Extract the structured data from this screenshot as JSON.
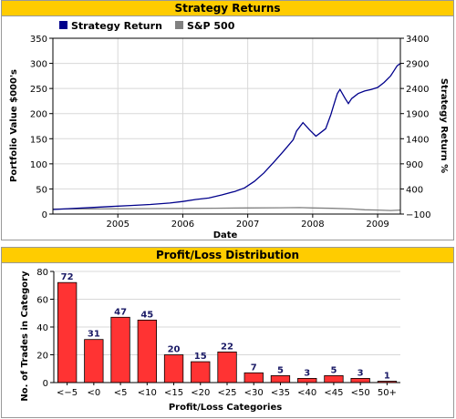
{
  "colors": {
    "header_band": "#ffcc00",
    "strategy_line": "#00008b",
    "sp500_line": "#808080",
    "bar_fill": "#ff3333",
    "bar_label": "#1a1a66"
  },
  "chart_data": [
    {
      "type": "line",
      "title": "Strategy Returns",
      "xlabel": "Date",
      "ylabel": "Portfolio Value $000's",
      "y2label": "Strategy Return %",
      "xlim": [
        2004.0,
        2009.35
      ],
      "xticks": [
        "2005",
        "2006",
        "2007",
        "2008",
        "2009"
      ],
      "ylim": [
        0,
        350
      ],
      "yticks": [
        "0",
        "50",
        "100",
        "150",
        "200",
        "250",
        "300",
        "350"
      ],
      "y2ticks": [
        "−100",
        "400",
        "900",
        "1400",
        "1900",
        "2400",
        "2900",
        "3400"
      ],
      "grid": true,
      "legend_position": "top",
      "series": [
        {
          "name": "Strategy Return",
          "x": [
            2004.0,
            2004.3,
            2004.6,
            2004.9,
            2005.2,
            2005.5,
            2005.8,
            2006.0,
            2006.2,
            2006.4,
            2006.6,
            2006.8,
            2006.95,
            2007.1,
            2007.25,
            2007.4,
            2007.55,
            2007.7,
            2007.75,
            2007.85,
            2007.95,
            2008.05,
            2008.1,
            2008.2,
            2008.28,
            2008.32,
            2008.38,
            2008.42,
            2008.5,
            2008.55,
            2008.6,
            2008.7,
            2008.8,
            2008.9,
            2009.0,
            2009.1,
            2009.2,
            2009.25,
            2009.3,
            2009.35
          ],
          "y": [
            9,
            11,
            13,
            15,
            17,
            19,
            22,
            25,
            29,
            32,
            38,
            45,
            52,
            65,
            82,
            103,
            125,
            148,
            165,
            182,
            168,
            155,
            160,
            170,
            198,
            215,
            240,
            248,
            230,
            220,
            230,
            240,
            245,
            248,
            252,
            262,
            275,
            285,
            295,
            300
          ]
        },
        {
          "name": "S&P 500",
          "x": [
            2004.0,
            2004.5,
            2005.0,
            2005.5,
            2006.0,
            2006.5,
            2007.0,
            2007.5,
            2007.8,
            2008.0,
            2008.3,
            2008.6,
            2008.8,
            2009.0,
            2009.2,
            2009.35
          ],
          "y": [
            10,
            10.2,
            10.5,
            10.8,
            11.2,
            11.6,
            12.1,
            12.6,
            12.9,
            12.2,
            11.4,
            10.2,
            8.6,
            7.9,
            7.0,
            8.0
          ]
        }
      ]
    },
    {
      "type": "bar",
      "title": "Profit/Loss Distribution",
      "xlabel": "Profit/Loss Categories",
      "ylabel": "No. of Trades in Category",
      "categories": [
        "<−5",
        "<0",
        "<5",
        "<10",
        "<15",
        "<20",
        "<25",
        "<30",
        "<35",
        "<40",
        "<45",
        "<50",
        "50+"
      ],
      "values": [
        72,
        31,
        47,
        45,
        20,
        15,
        22,
        7,
        5,
        3,
        5,
        3,
        1
      ],
      "ylim": [
        0,
        80
      ],
      "yticks": [
        "0",
        "20",
        "40",
        "60",
        "80"
      ],
      "grid": true
    }
  ]
}
